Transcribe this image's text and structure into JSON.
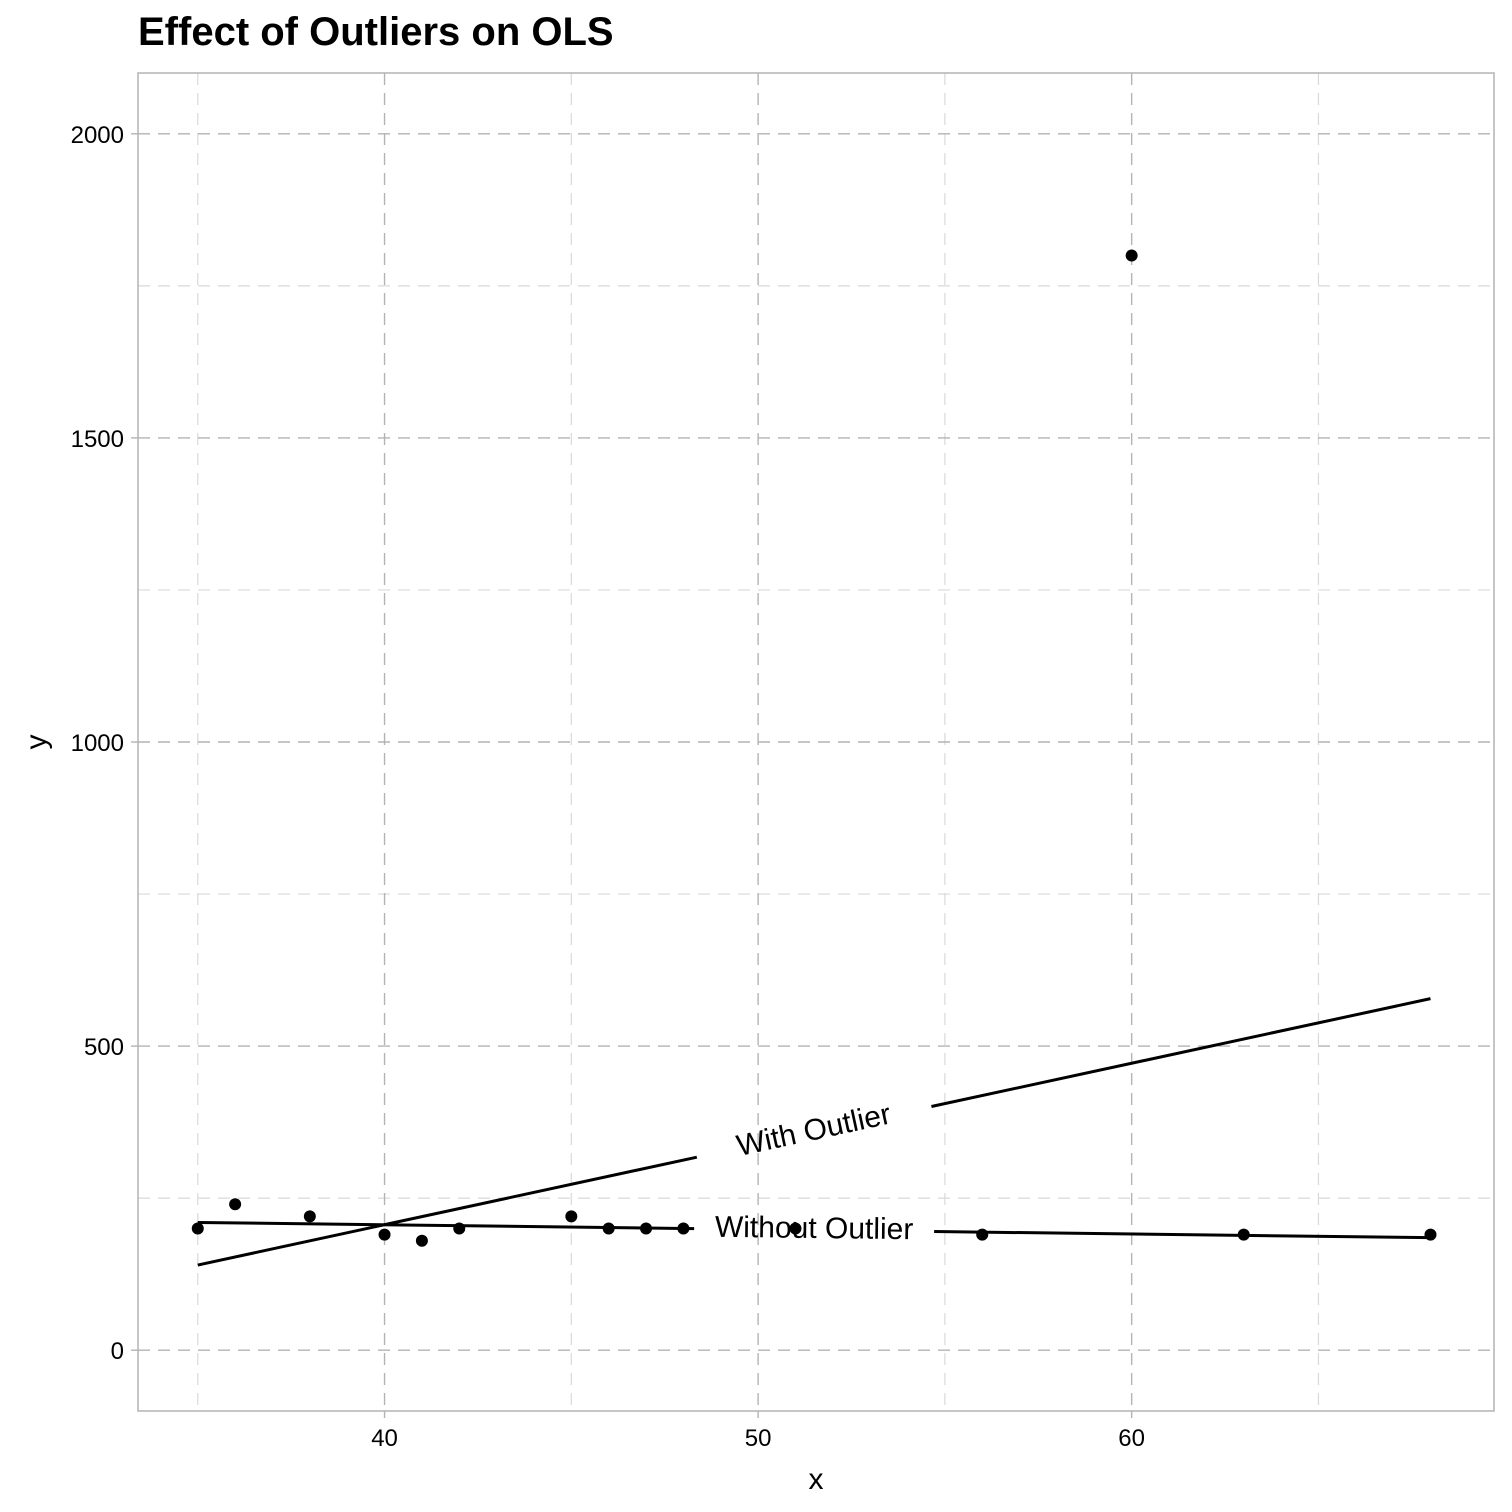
{
  "chart_data": {
    "type": "scatter",
    "title": "Effect of Outliers on OLS",
    "xlabel": "x",
    "ylabel": "y",
    "xlim": [
      33.4,
      69.7
    ],
    "ylim": [
      -100,
      2100
    ],
    "x_ticks": [
      40,
      50,
      60
    ],
    "y_ticks": [
      0,
      500,
      1000,
      1500,
      2000
    ],
    "x_minor_ticks": [
      35,
      45,
      55,
      65
    ],
    "y_minor_ticks": [
      250,
      750,
      1250,
      1750
    ],
    "grid": true,
    "grid_style": "dashed",
    "point_color": "#000000",
    "points": [
      {
        "x": 35,
        "y": 200
      },
      {
        "x": 36,
        "y": 240
      },
      {
        "x": 38,
        "y": 220
      },
      {
        "x": 40,
        "y": 190
      },
      {
        "x": 41,
        "y": 180
      },
      {
        "x": 42,
        "y": 200
      },
      {
        "x": 45,
        "y": 220
      },
      {
        "x": 46,
        "y": 200
      },
      {
        "x": 47,
        "y": 200
      },
      {
        "x": 48,
        "y": 200
      },
      {
        "x": 51,
        "y": 200
      },
      {
        "x": 56,
        "y": 190
      },
      {
        "x": 60,
        "y": 1800
      },
      {
        "x": 63,
        "y": 190
      },
      {
        "x": 68,
        "y": 190
      }
    ],
    "lines": [
      {
        "label": "With Outlier",
        "x": [
          35,
          68
        ],
        "y": [
          140,
          578
        ]
      },
      {
        "label": "Without Outlier",
        "x": [
          35,
          68
        ],
        "y": [
          210,
          185
        ]
      }
    ]
  }
}
